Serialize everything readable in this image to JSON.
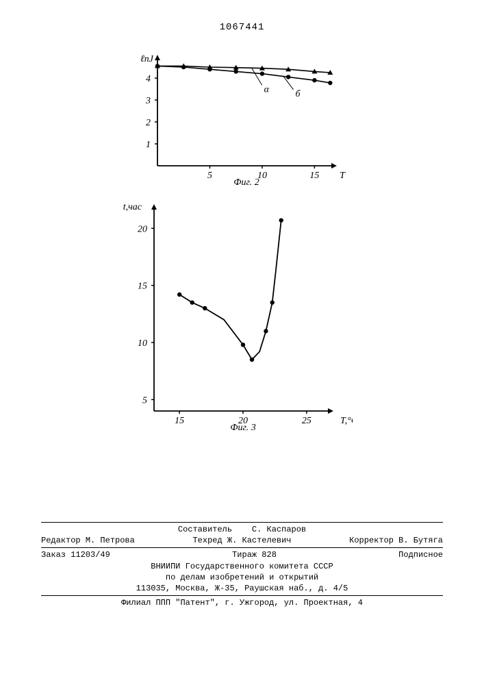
{
  "page_number": "1067441",
  "chart2": {
    "type": "line",
    "caption": "Фиг. 2",
    "ylabel": "ℓnJ",
    "xlabel": "T",
    "xlim": [
      0,
      17
    ],
    "ylim": [
      0,
      5
    ],
    "xticks": [
      5,
      10,
      15
    ],
    "yticks": [
      1,
      2,
      3,
      4
    ],
    "background_color": "#ffffff",
    "axis_color": "#000000",
    "series": [
      {
        "label": "α",
        "marker": "triangle",
        "color": "#000000",
        "line_width": 1.6,
        "points_x": [
          0,
          2.5,
          5,
          7.5,
          10,
          12.5,
          15,
          16.5
        ],
        "points_y": [
          4.55,
          4.55,
          4.5,
          4.48,
          4.45,
          4.4,
          4.3,
          4.25
        ]
      },
      {
        "label": "б",
        "marker": "circle",
        "color": "#000000",
        "line_width": 1.6,
        "points_x": [
          0,
          2.5,
          5,
          7.5,
          10,
          12.5,
          15,
          16.5
        ],
        "points_y": [
          4.55,
          4.5,
          4.4,
          4.3,
          4.2,
          4.05,
          3.9,
          3.78
        ]
      }
    ]
  },
  "chart3": {
    "type": "line",
    "caption": "Фиг. 3",
    "ylabel": "t,час",
    "xlabel": "T,°C",
    "xlim": [
      13,
      27
    ],
    "ylim": [
      4,
      22
    ],
    "xticks": [
      15,
      20,
      25
    ],
    "yticks": [
      5,
      10,
      15,
      20
    ],
    "background_color": "#ffffff",
    "axis_color": "#000000",
    "series": [
      {
        "marker": "circle",
        "color": "#000000",
        "line_width": 1.8,
        "points_x": [
          15,
          16,
          17,
          18.5,
          20,
          20.7,
          21.3,
          21.8,
          22.3,
          22.6,
          23.0
        ],
        "points_y": [
          14.2,
          13.5,
          13.0,
          12.0,
          9.8,
          8.5,
          9.2,
          11.0,
          13.5,
          16.5,
          20.7
        ]
      }
    ]
  },
  "footer": {
    "composer_label": "Составитель",
    "composer_name": "С. Каспаров",
    "editor_label": "Редактор",
    "editor_name": "М. Петрова",
    "techred_label": "Техред",
    "techred_name": "Ж. Кастелевич",
    "corrector_label": "Корректор",
    "corrector_name": "В. Бутяга",
    "order": "Заказ 11203/49",
    "tirazh": "Тираж  828",
    "podpisnoe": "Подписное",
    "org1": "ВНИИПИ Государственного комитета СССР",
    "org2": "по делам изобретений и открытий",
    "address1": "113035, Москва, Ж-35, Раушская наб., д. 4/5",
    "branch": "Филиал ППП \"Патент\", г. Ужгород, ул. Проектная, 4"
  }
}
